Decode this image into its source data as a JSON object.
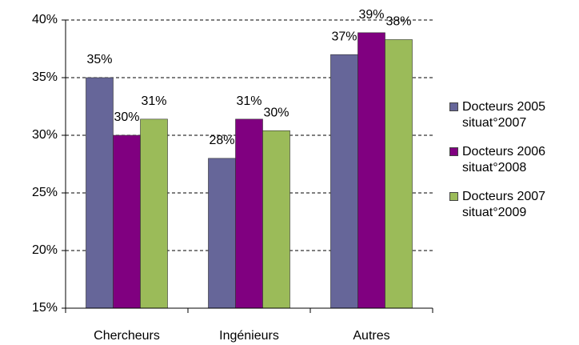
{
  "chart_data": {
    "type": "bar",
    "categories": [
      "Chercheurs",
      "Ingénieurs",
      "Autres"
    ],
    "series": [
      {
        "name": "Docteurs 2005 situat°2007",
        "color": "#666699",
        "values": [
          35,
          28,
          37
        ],
        "value_labels": [
          "35%",
          "28%",
          "37%"
        ]
      },
      {
        "name": "Docteurs 2006 situat°2008",
        "color": "#800080",
        "values": [
          30,
          31.4,
          38.9
        ],
        "value_labels": [
          "30%",
          "31%",
          "39%"
        ]
      },
      {
        "name": "Docteurs 2007 situat°2009",
        "color": "#9bbb59",
        "values": [
          31.4,
          30.4,
          38.3
        ],
        "value_labels": [
          "31%",
          "30%",
          "38%"
        ]
      }
    ],
    "ylim": [
      15,
      40
    ],
    "yticks": [
      {
        "value": 15,
        "label": "15%"
      },
      {
        "value": 20,
        "label": "20%"
      },
      {
        "value": 25,
        "label": "25%"
      },
      {
        "value": 30,
        "label": "30%"
      },
      {
        "value": 35,
        "label": "35%"
      },
      {
        "value": 40,
        "label": "40%"
      }
    ],
    "grid": true,
    "legend": "right"
  }
}
